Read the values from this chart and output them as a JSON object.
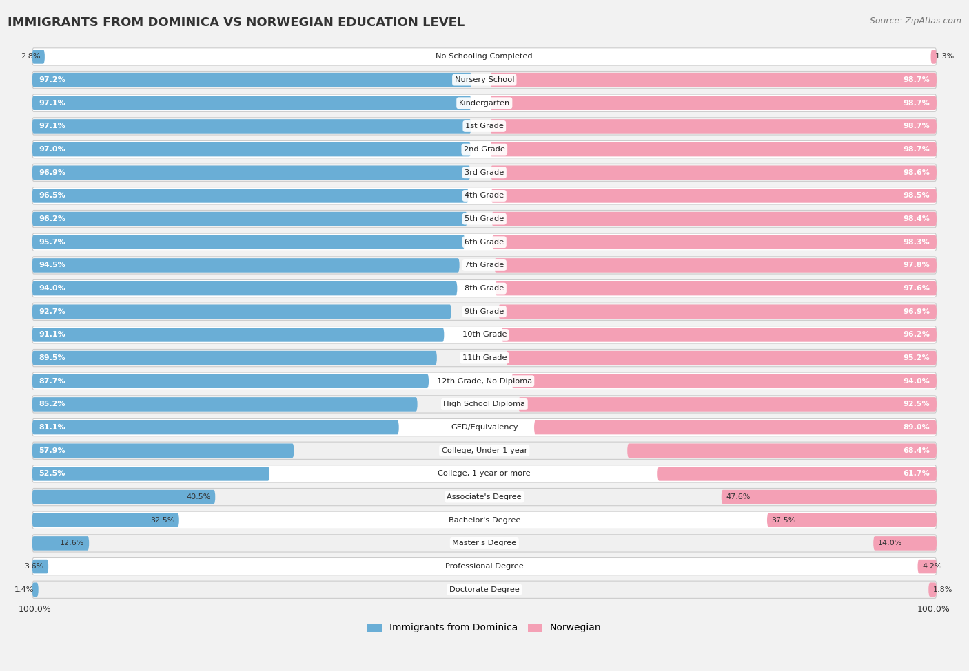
{
  "title": "IMMIGRANTS FROM DOMINICA VS NORWEGIAN EDUCATION LEVEL",
  "source": "Source: ZipAtlas.com",
  "categories": [
    "No Schooling Completed",
    "Nursery School",
    "Kindergarten",
    "1st Grade",
    "2nd Grade",
    "3rd Grade",
    "4th Grade",
    "5th Grade",
    "6th Grade",
    "7th Grade",
    "8th Grade",
    "9th Grade",
    "10th Grade",
    "11th Grade",
    "12th Grade, No Diploma",
    "High School Diploma",
    "GED/Equivalency",
    "College, Under 1 year",
    "College, 1 year or more",
    "Associate's Degree",
    "Bachelor's Degree",
    "Master's Degree",
    "Professional Degree",
    "Doctorate Degree"
  ],
  "dominica_values": [
    2.8,
    97.2,
    97.1,
    97.1,
    97.0,
    96.9,
    96.5,
    96.2,
    95.7,
    94.5,
    94.0,
    92.7,
    91.1,
    89.5,
    87.7,
    85.2,
    81.1,
    57.9,
    52.5,
    40.5,
    32.5,
    12.6,
    3.6,
    1.4
  ],
  "norwegian_values": [
    1.3,
    98.7,
    98.7,
    98.7,
    98.7,
    98.6,
    98.5,
    98.4,
    98.3,
    97.8,
    97.6,
    96.9,
    96.2,
    95.2,
    94.0,
    92.5,
    89.0,
    68.4,
    61.7,
    47.6,
    37.5,
    14.0,
    4.2,
    1.8
  ],
  "dominica_color": "#6aaed6",
  "norwegian_color": "#f4a0b5",
  "background_color": "#f2f2f2",
  "row_bg_color": "#ffffff",
  "row_alt_bg_color": "#f0f0f0"
}
